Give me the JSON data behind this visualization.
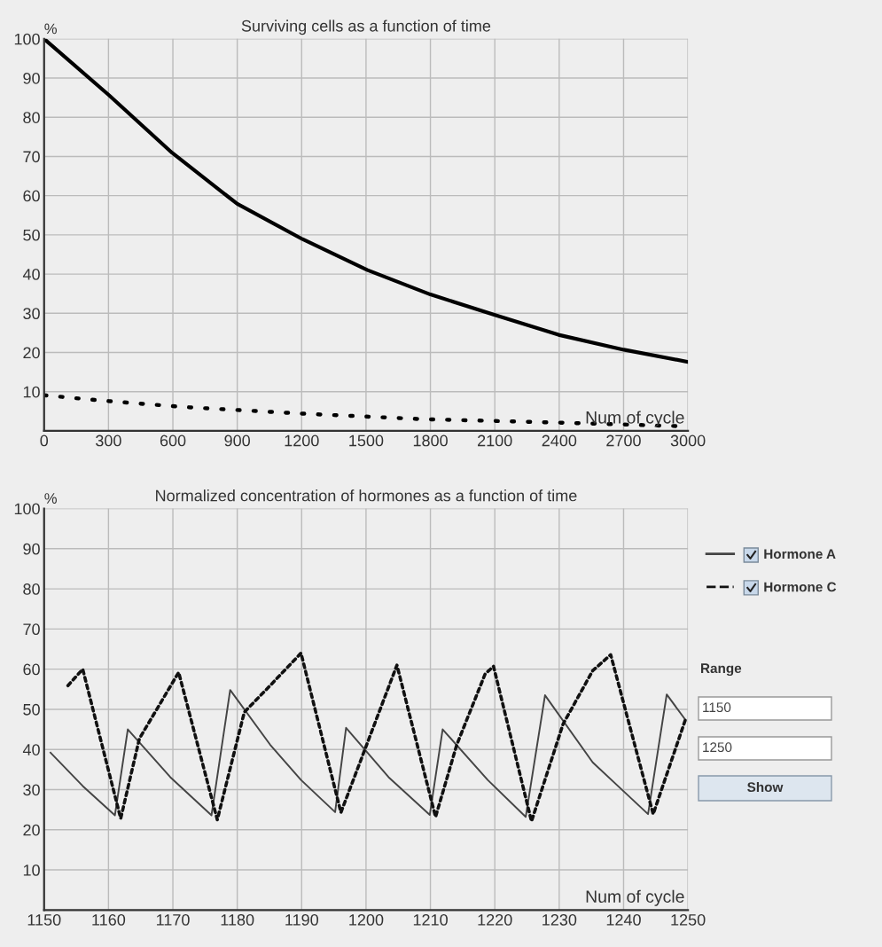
{
  "chart_data": [
    {
      "type": "line",
      "title": "Surviving cells as a function of time",
      "xlabel": "Num of cycle",
      "ylabel": "%",
      "xlim": [
        0,
        3000
      ],
      "xticks": [
        0,
        300,
        600,
        900,
        1200,
        1500,
        1800,
        2100,
        2400,
        2700,
        3000
      ],
      "ylim": [
        0,
        100
      ],
      "yticks": [
        {
          "value": 0,
          "label": null
        },
        10,
        20,
        30,
        40,
        50,
        60,
        70,
        80,
        90,
        100
      ],
      "grid": true,
      "series": [
        {
          "color": "#000000",
          "line_style": "solid",
          "x": [
            0,
            303,
            597,
            900,
            1204,
            1507,
            1800,
            2104,
            2397,
            2701,
            3000
          ],
          "values": [
            100,
            85.6,
            70.9,
            57.9,
            48.9,
            41.0,
            34.8,
            29.5,
            24.5,
            20.7,
            17.6
          ]
        },
        {
          "color": "#000000",
          "line_style": "dotted",
          "x": [
            0,
            253,
            647,
            1204,
            1760,
            2407,
            2964
          ],
          "values": [
            9.1,
            7.8,
            6.1,
            4.4,
            3.0,
            2.1,
            1.2
          ]
        }
      ]
    },
    {
      "type": "line",
      "title": "Normalized concentration of hormones as a function of time",
      "xlabel": "Num of cycle",
      "ylabel": "%",
      "xlim": [
        1150,
        1250
      ],
      "xticks": [
        1150,
        1160,
        1170,
        1180,
        1190,
        1200,
        1210,
        1220,
        1230,
        1240,
        1250
      ],
      "ylim": [
        0,
        100
      ],
      "yticks": [
        {
          "value": 0,
          "label": null
        },
        10,
        20,
        30,
        40,
        50,
        60,
        70,
        80,
        90,
        100
      ],
      "grid": true,
      "legend": "right",
      "annotations": [
        "Range",
        "1150",
        "1250",
        "Show"
      ],
      "series": [
        {
          "name": "Hormone A",
          "color": "#444444",
          "line_style": "solid",
          "x": [
            1151.0,
            1156.0,
            1161.0,
            1163.0,
            1169.6,
            1176.0,
            1178.9,
            1185.1,
            1189.9,
            1195.2,
            1196.9,
            1203.5,
            1209.9,
            1211.9,
            1218.9,
            1224.8,
            1227.8,
            1235.2,
            1239.6,
            1243.8,
            1246.7,
            1249.6
          ],
          "values": [
            39.2,
            30.9,
            23.6,
            45.0,
            33.1,
            23.6,
            54.8,
            41.2,
            32.4,
            24.4,
            45.4,
            33.1,
            23.7,
            45.0,
            32.4,
            23.2,
            53.5,
            36.8,
            30.2,
            23.9,
            53.7,
            47.4
          ]
        },
        {
          "name": "Hormone C",
          "color": "#111111",
          "line_style": "dotted",
          "x": [
            1153.7,
            1156.0,
            1161.9,
            1164.8,
            1170.9,
            1176.9,
            1181.1,
            1185.1,
            1189.9,
            1196.1,
            1204.8,
            1210.8,
            1214.1,
            1218.5,
            1219.8,
            1225.7,
            1230.6,
            1235.2,
            1238.0,
            1244.6,
            1249.6
          ],
          "values": [
            55.9,
            60.0,
            22.8,
            42.7,
            59.2,
            22.5,
            49.3,
            55.9,
            64.0,
            24.3,
            61.0,
            23.2,
            41.2,
            58.8,
            60.7,
            22.1,
            46.3,
            59.6,
            63.6,
            23.9,
            47.4
          ]
        }
      ]
    }
  ]
}
